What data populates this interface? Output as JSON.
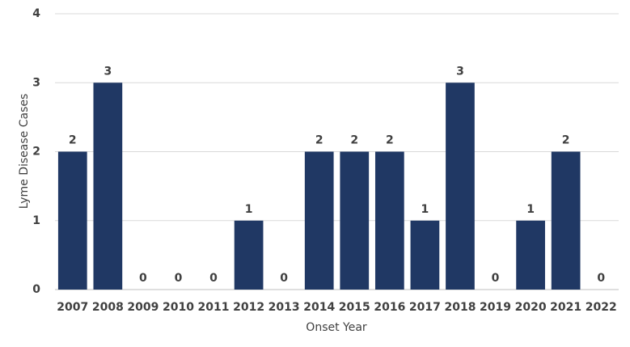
{
  "chart_data": {
    "type": "bar",
    "categories": [
      "2007",
      "2008",
      "2009",
      "2010",
      "2011",
      "2012",
      "2013",
      "2014",
      "2015",
      "2016",
      "2017",
      "2018",
      "2019",
      "2020",
      "2021",
      "2022"
    ],
    "values": [
      2,
      3,
      0,
      0,
      0,
      1,
      0,
      2,
      2,
      2,
      1,
      3,
      0,
      1,
      2,
      0
    ],
    "color": "#203864",
    "ylim": [
      0,
      4
    ],
    "yticks": [
      0,
      1,
      2,
      3,
      4
    ],
    "grid": true,
    "y_label": "Lyme Disease Cases",
    "x_label": "Onset Year"
  }
}
